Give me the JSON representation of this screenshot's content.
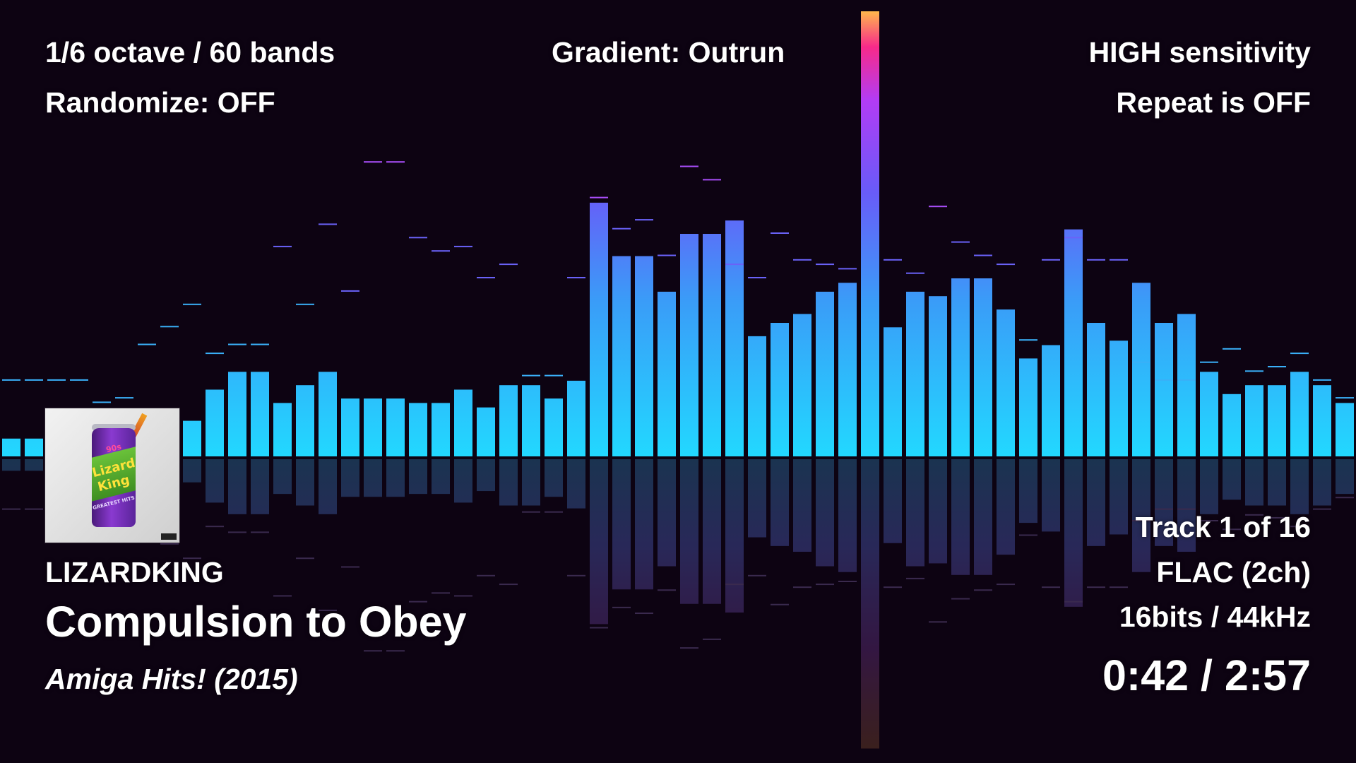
{
  "settings": {
    "bands_label": "1/6 octave / 60 bands",
    "randomize_label": "Randomize: OFF",
    "gradient_label": "Gradient: Outrun",
    "sensitivity_label": "HIGH sensitivity",
    "repeat_label": "Repeat is OFF"
  },
  "now_playing": {
    "artist": "LIZARDKING",
    "title": "Compulsion to Obey",
    "album": "Amiga Hits! (2015)",
    "cover_text": [
      "90s",
      "Lizard",
      "King",
      "GREATEST HITS"
    ]
  },
  "track_info": {
    "track_position": "Track 1 of 16",
    "format": "FLAC (2ch)",
    "bit_depth": "16bits / 44kHz",
    "time": "0:42 / 2:57"
  },
  "analyzer": {
    "band_count": 60,
    "gradient": "Outrun",
    "gradient_colors": [
      "#ffb84c",
      "#f72a8a",
      "#a82ff8",
      "#6a5af8",
      "#2fb3f8",
      "#22d8ff"
    ],
    "bar_levels": [
      0.04,
      0.04,
      0.02,
      0.03,
      0.02,
      0.04,
      0.02,
      0.02,
      0.08,
      0.15,
      0.19,
      0.19,
      0.12,
      0.16,
      0.19,
      0.13,
      0.13,
      0.13,
      0.12,
      0.12,
      0.15,
      0.11,
      0.16,
      0.16,
      0.13,
      0.17,
      0.57,
      0.45,
      0.45,
      0.37,
      0.5,
      0.5,
      0.53,
      0.27,
      0.3,
      0.32,
      0.37,
      0.39,
      1.0,
      0.29,
      0.37,
      0.36,
      0.4,
      0.4,
      0.33,
      0.22,
      0.25,
      0.51,
      0.3,
      0.26,
      0.39,
      0.3,
      0.32,
      0.19,
      0.14,
      0.16,
      0.16,
      0.19,
      0.16,
      0.12
    ],
    "peak_levels": [
      0.17,
      0.17,
      0.17,
      0.17,
      0.12,
      0.13,
      0.25,
      0.29,
      0.34,
      0.23,
      0.25,
      0.25,
      0.47,
      0.34,
      0.52,
      0.37,
      0.66,
      0.66,
      0.49,
      0.46,
      0.47,
      0.4,
      0.43,
      0.18,
      0.18,
      0.4,
      0.58,
      0.51,
      0.53,
      0.45,
      0.65,
      0.62,
      0.43,
      0.4,
      0.5,
      0.44,
      0.43,
      0.42,
      1.0,
      0.44,
      0.41,
      0.56,
      0.48,
      0.45,
      0.43,
      0.26,
      0.44,
      0.49,
      0.44,
      0.44,
      0.21,
      0.17,
      0.17,
      0.21,
      0.24,
      0.19,
      0.2,
      0.23,
      0.17,
      0.13
    ],
    "reflection": true
  }
}
